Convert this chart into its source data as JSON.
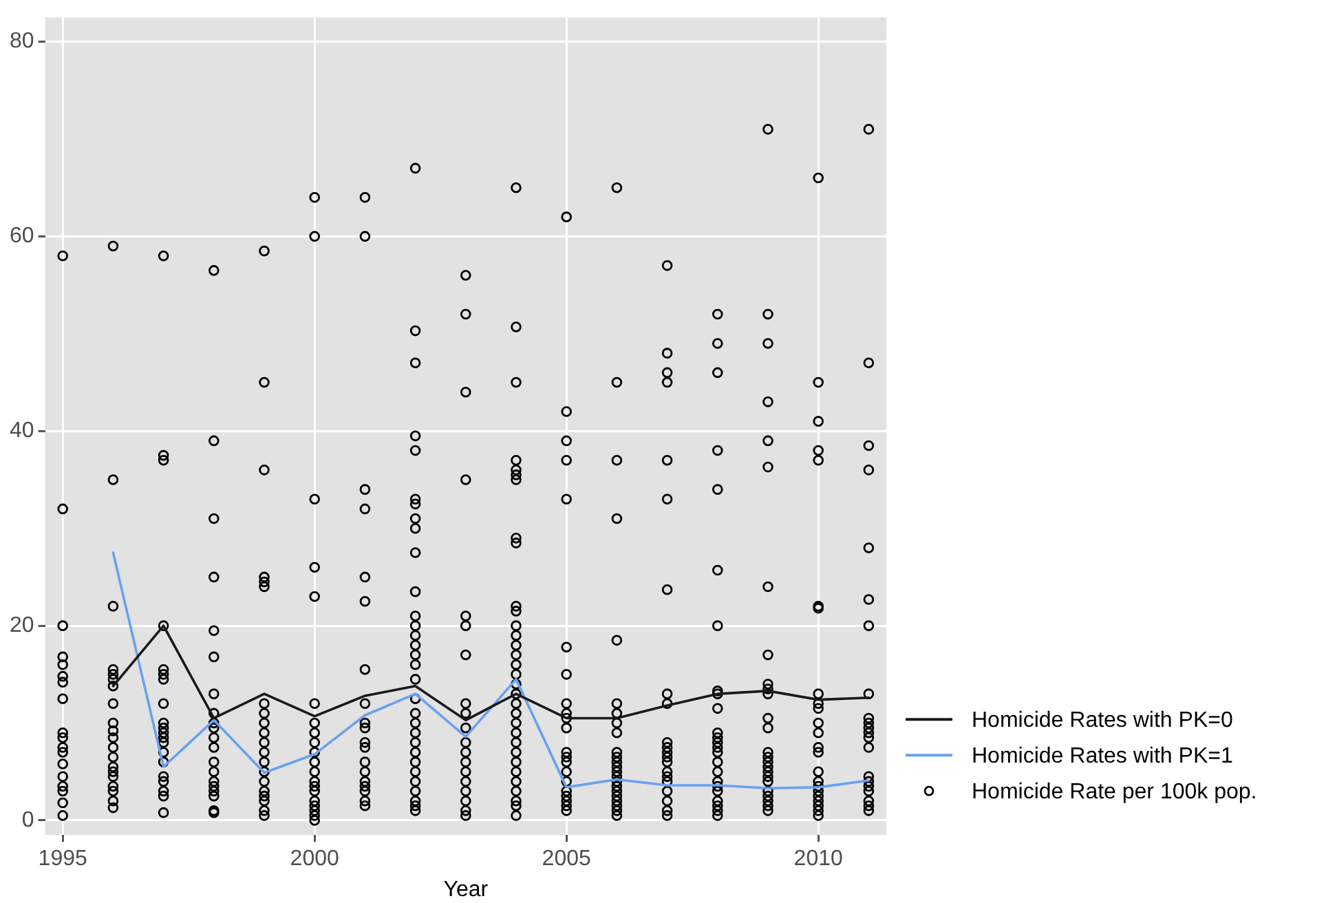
{
  "chart_data": {
    "type": "scatter",
    "xlabel": "Year",
    "xlim": [
      1994.65,
      2011.35
    ],
    "xticks": [
      1995,
      2000,
      2005,
      2010
    ],
    "ylim": [
      -1.5,
      82.5
    ],
    "yticks": [
      0,
      20,
      40,
      60,
      80
    ],
    "grid": true,
    "legend": "right",
    "series": [
      {
        "name": "Homicide Rates with PK=0",
        "type": "line",
        "color": "#1a1a1a",
        "marker": "none",
        "line_style": "solid",
        "x": [
          1996,
          1997,
          1998,
          1999,
          2000,
          2001,
          2002,
          2003,
          2004,
          2005,
          2006,
          2007,
          2008,
          2009,
          2010,
          2011
        ],
        "values": [
          13.8,
          20,
          10.5,
          13,
          10.7,
          12.8,
          13.8,
          10.3,
          13,
          10.5,
          10.5,
          11.8,
          13,
          13.3,
          12.4,
          12.6
        ]
      },
      {
        "name": "Homicide Rates with PK=1",
        "type": "line",
        "color": "#6aa0f0",
        "marker": "none",
        "line_style": "solid",
        "x": [
          1996,
          1997,
          1998,
          1999,
          2000,
          2001,
          2002,
          2003,
          2004,
          2005,
          2006,
          2007,
          2008,
          2009,
          2010,
          2011
        ],
        "values": [
          27.5,
          5.5,
          10.3,
          4.9,
          6.8,
          10.8,
          13,
          8.6,
          14.5,
          3.4,
          4.2,
          3.6,
          3.6,
          3.3,
          3.4,
          4.1
        ]
      },
      {
        "name": "Homicide Rate per 100k pop.",
        "type": "scatter",
        "color": "#000000",
        "marker": "circle",
        "x": [
          1995,
          1995,
          1995,
          1995,
          1995,
          1995,
          1995,
          1995,
          1995,
          1995,
          1995,
          1995,
          1995,
          1995,
          1995,
          1995,
          1995,
          1995,
          1996,
          1996,
          1996,
          1996,
          1996,
          1996,
          1996,
          1996,
          1996,
          1996,
          1996,
          1996,
          1996,
          1996,
          1996,
          1996,
          1996,
          1996,
          1996,
          1996,
          1997,
          1997,
          1997,
          1997,
          1997,
          1997,
          1997,
          1997,
          1997,
          1997,
          1997,
          1997,
          1997,
          1997,
          1997,
          1997,
          1997,
          1997,
          1997,
          1997,
          1998,
          1998,
          1998,
          1998,
          1998,
          1998,
          1998,
          1998,
          1998,
          1998,
          1998,
          1998,
          1998,
          1998,
          1998,
          1998,
          1998,
          1998,
          1998,
          1998,
          1999,
          1999,
          1999,
          1999,
          1999,
          1999,
          1999,
          1999,
          1999,
          1999,
          1999,
          1999,
          1999,
          1999,
          1999,
          1999,
          1999,
          1999,
          1999,
          1999,
          2000,
          2000,
          2000,
          2000,
          2000,
          2000,
          2000,
          2000,
          2000,
          2000,
          2000,
          2000,
          2000,
          2000,
          2000,
          2000,
          2000,
          2000,
          2000,
          2000,
          2001,
          2001,
          2001,
          2001,
          2001,
          2001,
          2001,
          2001,
          2001,
          2001,
          2001,
          2001,
          2001,
          2001,
          2001,
          2001,
          2001,
          2001,
          2001,
          2002,
          2002,
          2002,
          2002,
          2002,
          2002,
          2002,
          2002,
          2002,
          2002,
          2002,
          2002,
          2002,
          2002,
          2002,
          2002,
          2002,
          2002,
          2002,
          2002,
          2002,
          2002,
          2002,
          2002,
          2002,
          2002,
          2002,
          2002,
          2002,
          2002,
          2002,
          2003,
          2003,
          2003,
          2003,
          2003,
          2003,
          2003,
          2003,
          2003,
          2003,
          2003,
          2003,
          2003,
          2003,
          2003,
          2003,
          2003,
          2003,
          2003,
          2004,
          2004,
          2004,
          2004,
          2004,
          2004,
          2004,
          2004,
          2004,
          2004,
          2004,
          2004,
          2004,
          2004,
          2004,
          2004,
          2004,
          2004,
          2004,
          2004,
          2004,
          2004,
          2004,
          2004,
          2004,
          2004,
          2004,
          2004,
          2004,
          2004,
          2004,
          2004,
          2005,
          2005,
          2005,
          2005,
          2005,
          2005,
          2005,
          2005,
          2005,
          2005,
          2005,
          2005,
          2005,
          2005,
          2005,
          2005,
          2005,
          2005,
          2005,
          2005,
          2005,
          2006,
          2006,
          2006,
          2006,
          2006,
          2006,
          2006,
          2006,
          2006,
          2006,
          2006,
          2006,
          2006,
          2006,
          2006,
          2006,
          2006,
          2006,
          2006,
          2006,
          2006,
          2006,
          2006,
          2007,
          2007,
          2007,
          2007,
          2007,
          2007,
          2007,
          2007,
          2007,
          2007,
          2007,
          2007,
          2007,
          2007,
          2007,
          2007,
          2007,
          2007,
          2007,
          2007,
          2007,
          2008,
          2008,
          2008,
          2008,
          2008,
          2008,
          2008,
          2008,
          2008,
          2008,
          2008,
          2008,
          2008,
          2008,
          2008,
          2008,
          2008,
          2008,
          2008,
          2008,
          2008,
          2008,
          2008,
          2008,
          2009,
          2009,
          2009,
          2009,
          2009,
          2009,
          2009,
          2009,
          2009,
          2009,
          2009,
          2009,
          2009,
          2009,
          2009,
          2009,
          2009,
          2009,
          2009,
          2009,
          2009,
          2009,
          2009,
          2009,
          2009,
          2010,
          2010,
          2010,
          2010,
          2010,
          2010,
          2010,
          2010,
          2010,
          2010,
          2010,
          2010,
          2010,
          2010,
          2010,
          2010,
          2010,
          2010,
          2010,
          2010,
          2010,
          2010,
          2010,
          2011,
          2011,
          2011,
          2011,
          2011,
          2011,
          2011,
          2011,
          2011,
          2011,
          2011,
          2011,
          2011,
          2011,
          2011,
          2011,
          2011,
          2011,
          2011,
          2011,
          2011
        ],
        "values": [
          58,
          32,
          20,
          16.8,
          16,
          14.8,
          14.2,
          12.5,
          9,
          8.5,
          7.5,
          7,
          5.8,
          4.5,
          3.5,
          3,
          1.8,
          0.5,
          59,
          35,
          22,
          15.5,
          15,
          14.5,
          13.8,
          12,
          10,
          9.2,
          8.5,
          7.5,
          6.5,
          5.5,
          5,
          4.5,
          3.5,
          3,
          2,
          1.3,
          58,
          37.5,
          37,
          20,
          15.5,
          15,
          14.5,
          12,
          10,
          9.5,
          9,
          8.5,
          8,
          7,
          6,
          4.5,
          4,
          3,
          2.5,
          0.8,
          56.5,
          39,
          31,
          25,
          19.5,
          16.8,
          13,
          11,
          10,
          9.5,
          8.5,
          7.5,
          6,
          5,
          4,
          3.5,
          3,
          2.5,
          1,
          0.8,
          58.5,
          45,
          36,
          25,
          24.5,
          24,
          12,
          11,
          10,
          9,
          8,
          7,
          6,
          5,
          4,
          3,
          2.5,
          2,
          1,
          0.5,
          64,
          60,
          33,
          26,
          23,
          12,
          10,
          9,
          8,
          7,
          6,
          5,
          4,
          3.5,
          3,
          2,
          1.5,
          1,
          0.5,
          0,
          64,
          60,
          34,
          32,
          25,
          22.5,
          15.5,
          12,
          10,
          9.5,
          8,
          7.5,
          6,
          5,
          4,
          3.5,
          3,
          2,
          1.5,
          67,
          50.3,
          47,
          39.5,
          38,
          33,
          32.5,
          31,
          30,
          27.5,
          23.5,
          21,
          20,
          19,
          18,
          17,
          16,
          14.5,
          12.5,
          11,
          10,
          9,
          8,
          7,
          6,
          5,
          4,
          3,
          2,
          1.5,
          1,
          56,
          52,
          44,
          35,
          21,
          20,
          17,
          12,
          11,
          9.5,
          8,
          7,
          6,
          5,
          4,
          3,
          2,
          1,
          0.5,
          65,
          50.7,
          45,
          37,
          36,
          35.5,
          35,
          29,
          28.5,
          22,
          21.5,
          20,
          19,
          18,
          17,
          16,
          15,
          14,
          13,
          12,
          11,
          10,
          9,
          8,
          7,
          6,
          5,
          4,
          3,
          2,
          1.5,
          0.5,
          62,
          42,
          39,
          37,
          33,
          17.8,
          15,
          12,
          11,
          10.5,
          9.5,
          7,
          6.5,
          6,
          5,
          4,
          3,
          2.5,
          2,
          1.5,
          1,
          65,
          45,
          37,
          31,
          18.5,
          12,
          11,
          10,
          9,
          7,
          6.5,
          6,
          5.5,
          5,
          4.5,
          4,
          3.5,
          3,
          2.5,
          2,
          1.5,
          1,
          0.5,
          57,
          48,
          46,
          45,
          37,
          33,
          23.7,
          13,
          12,
          8,
          7.5,
          7,
          6.5,
          6,
          5,
          4.5,
          4,
          3,
          2,
          1,
          0.5,
          52,
          49,
          46,
          38,
          34,
          25.7,
          20,
          13.3,
          13,
          11.5,
          9,
          8.5,
          8,
          7.5,
          7,
          6,
          5,
          4,
          3.5,
          3,
          2,
          1.5,
          1,
          0.5,
          71,
          52,
          49,
          43,
          39,
          36.3,
          24,
          17,
          14,
          13.5,
          13,
          10.5,
          9.5,
          7,
          6.5,
          6,
          5.5,
          5,
          4.5,
          4,
          3,
          2.5,
          2,
          1.5,
          1,
          66,
          45,
          41,
          38,
          37,
          22,
          21.8,
          13,
          12,
          11.5,
          10,
          9,
          7.5,
          7,
          5,
          4,
          3.5,
          3,
          2.5,
          2,
          1.5,
          1,
          0.5,
          71,
          47,
          38.5,
          36,
          28,
          22.7,
          20,
          13,
          10.5,
          10,
          9.5,
          9,
          8.5,
          7.5,
          4.5,
          4,
          3.5,
          3,
          2,
          1.5,
          1
        ]
      }
    ]
  }
}
